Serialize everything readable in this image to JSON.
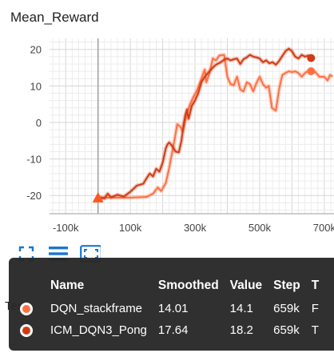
{
  "card": {
    "title": "Mean_Reward"
  },
  "colors": {
    "series_0": "#ff7043",
    "series_1": "#d13b14",
    "grid": "#e0e0e0",
    "axis": "#9e9e9e",
    "toolbar": "#1976d2"
  },
  "toolbar": {
    "icons": [
      "fit-domain-icon",
      "data-table-icon",
      "expand-chart-icon"
    ]
  },
  "behind_text": "Ten",
  "tooltip": {
    "headers": {
      "name": "Name",
      "smoothed": "Smoothed",
      "value": "Value",
      "step": "Step",
      "extra": "T"
    },
    "rows": [
      {
        "name": "DQN_stackframe",
        "smoothed": "14.01",
        "value": "14.1",
        "step": "659k",
        "extra": "F",
        "color": "#ff7043"
      },
      {
        "name": "ICM_DQN3_Pong",
        "smoothed": "17.64",
        "value": "18.2",
        "step": "659k",
        "extra": "T",
        "color": "#d13b14"
      }
    ]
  },
  "chart_data": {
    "type": "line",
    "x_ticks": [
      "-100k",
      "100k",
      "300k",
      "500k",
      "700k"
    ],
    "y_ticks": [
      "20",
      "10",
      "0",
      "-10",
      "-20"
    ],
    "xlim": [
      -150000,
      730000
    ],
    "ylim": [
      -25,
      23
    ],
    "grid": true,
    "series": [
      {
        "name": "DQN_stackframe",
        "color": "#ff7043",
        "points": [
          [
            0,
            -20.6
          ],
          [
            40000,
            -20.6
          ],
          [
            100000,
            -20.6
          ],
          [
            150000,
            -20.4
          ],
          [
            170000,
            -19.5
          ],
          [
            185000,
            -17.8
          ],
          [
            195000,
            -18.8
          ],
          [
            210000,
            -16.5
          ],
          [
            220000,
            -12.5
          ],
          [
            235000,
            -5.5
          ],
          [
            245000,
            -0.5
          ],
          [
            255000,
            -1.2
          ],
          [
            262000,
            -2.5
          ],
          [
            275000,
            2.5
          ],
          [
            285000,
            5
          ],
          [
            295000,
            7
          ],
          [
            305000,
            8.5
          ],
          [
            320000,
            12
          ],
          [
            330000,
            14.5
          ],
          [
            335000,
            11
          ],
          [
            345000,
            13.5
          ],
          [
            355000,
            17.5
          ],
          [
            365000,
            17
          ],
          [
            375000,
            18.3
          ],
          [
            390000,
            18.5
          ],
          [
            400000,
            12.5
          ],
          [
            410000,
            10.5
          ],
          [
            420000,
            10.2
          ],
          [
            430000,
            12.5
          ],
          [
            440000,
            9
          ],
          [
            450000,
            8.5
          ],
          [
            460000,
            11
          ],
          [
            470000,
            10.5
          ],
          [
            480000,
            8.5
          ],
          [
            490000,
            10.8
          ],
          [
            500000,
            12.5
          ],
          [
            510000,
            10.5
          ],
          [
            520000,
            9.5
          ],
          [
            528000,
            10
          ],
          [
            538000,
            4
          ],
          [
            550000,
            3.2
          ],
          [
            560000,
            9
          ],
          [
            570000,
            13
          ],
          [
            580000,
            13.5
          ],
          [
            590000,
            14
          ],
          [
            600000,
            13.8
          ],
          [
            610000,
            14
          ],
          [
            620000,
            13.5
          ],
          [
            630000,
            12.5
          ],
          [
            640000,
            13.5
          ],
          [
            650000,
            14.1
          ],
          [
            659000,
            14.01
          ],
          [
            670000,
            14
          ],
          [
            685000,
            12.5
          ],
          [
            700000,
            12.5
          ],
          [
            710000,
            11.5
          ],
          [
            718000,
            13
          ],
          [
            725000,
            12.5
          ]
        ]
      },
      {
        "name": "ICM_DQN3_Pong",
        "color": "#d13b14",
        "points": [
          [
            0,
            -20.5
          ],
          [
            20000,
            -20.8
          ],
          [
            30000,
            -19.5
          ],
          [
            40000,
            -20.5
          ],
          [
            60000,
            -19.8
          ],
          [
            80000,
            -20.3
          ],
          [
            100000,
            -19
          ],
          [
            120000,
            -17.3
          ],
          [
            140000,
            -16.8
          ],
          [
            150000,
            -15.3
          ],
          [
            160000,
            -14
          ],
          [
            170000,
            -14.8
          ],
          [
            180000,
            -12.7
          ],
          [
            190000,
            -13.5
          ],
          [
            200000,
            -11
          ],
          [
            210000,
            -7
          ],
          [
            215000,
            -6
          ],
          [
            220000,
            -5.5
          ],
          [
            230000,
            -6.5
          ],
          [
            240000,
            -8
          ],
          [
            250000,
            -8.2
          ],
          [
            258000,
            -5
          ],
          [
            265000,
            -0.5
          ],
          [
            270000,
            2
          ],
          [
            275000,
            3.5
          ],
          [
            280000,
            1
          ],
          [
            290000,
            4.5
          ],
          [
            300000,
            6
          ],
          [
            310000,
            8
          ],
          [
            320000,
            11
          ],
          [
            330000,
            12.5
          ],
          [
            340000,
            13.5
          ],
          [
            355000,
            15
          ],
          [
            365000,
            15.8
          ],
          [
            380000,
            16.5
          ],
          [
            390000,
            17.2
          ],
          [
            400000,
            17.5
          ],
          [
            410000,
            17
          ],
          [
            420000,
            17.3
          ],
          [
            430000,
            17.5
          ],
          [
            440000,
            16
          ],
          [
            450000,
            17.3
          ],
          [
            460000,
            17.8
          ],
          [
            470000,
            18.5
          ],
          [
            480000,
            18
          ],
          [
            490000,
            17.8
          ],
          [
            500000,
            17.5
          ],
          [
            510000,
            16.5
          ],
          [
            520000,
            17
          ],
          [
            530000,
            16.2
          ],
          [
            540000,
            16.5
          ],
          [
            550000,
            15.8
          ],
          [
            560000,
            16.8
          ],
          [
            570000,
            18.2
          ],
          [
            580000,
            19.5
          ],
          [
            590000,
            20.2
          ],
          [
            600000,
            19.5
          ],
          [
            610000,
            18
          ],
          [
            620000,
            17.5
          ],
          [
            630000,
            18.5
          ],
          [
            640000,
            18
          ],
          [
            650000,
            18.3
          ],
          [
            659000,
            17.64
          ]
        ]
      }
    ]
  }
}
